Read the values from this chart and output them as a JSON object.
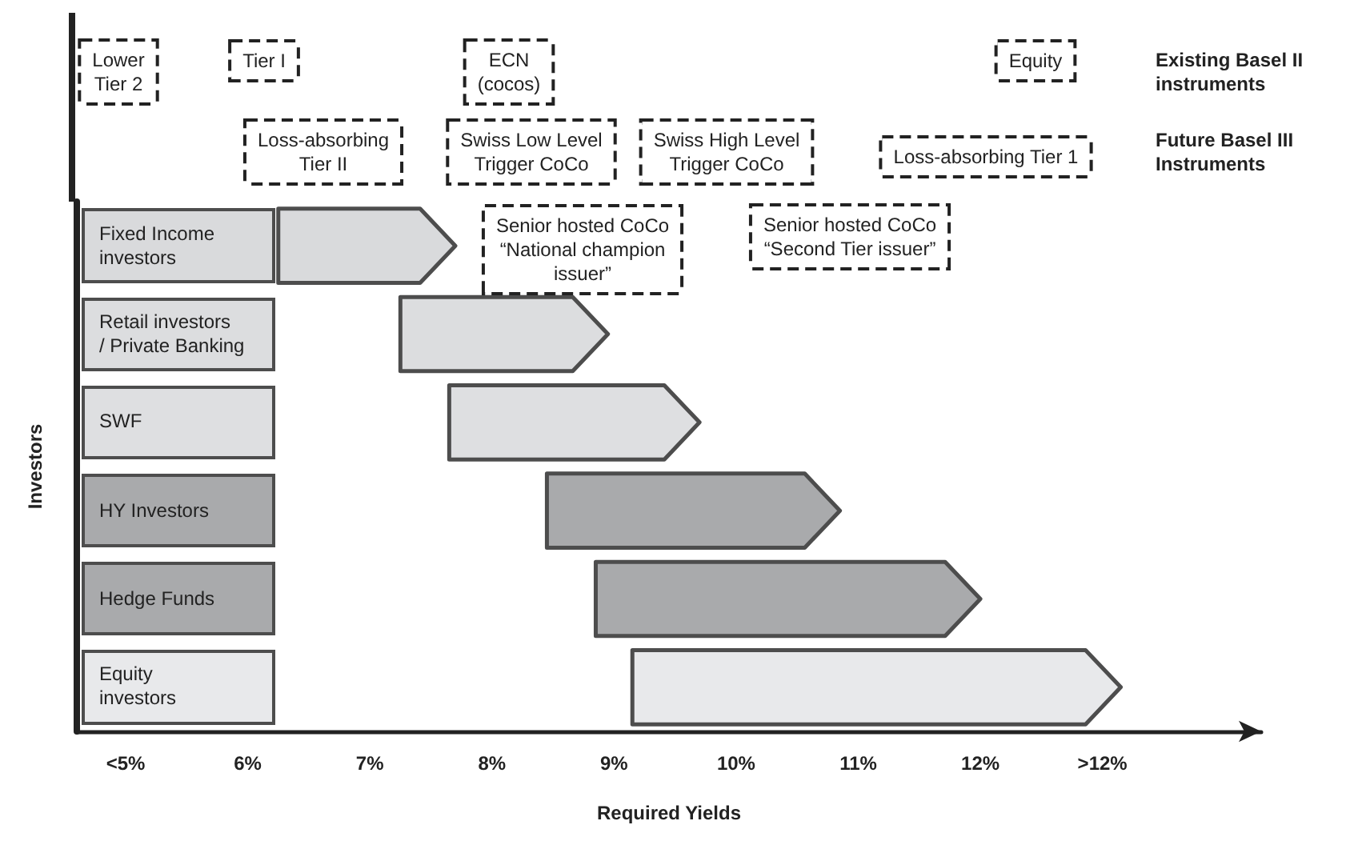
{
  "chart_data": {
    "type": "bar",
    "orientation": "horizontal",
    "xlabel": "Required Yields",
    "ylabel": "Investors",
    "categories": [
      "Fixed Income\ninvestors",
      "Retail investors\n/ Private Banking",
      "SWF",
      "HY Investors",
      "Hedge Funds",
      "Equity\ninvestors"
    ],
    "base": [
      6.25,
      7.25,
      7.65,
      8.45,
      8.85,
      9.15
    ],
    "values": [
      1.45,
      1.7,
      2.05,
      2.4,
      3.15,
      4.0
    ],
    "colors": [
      "#d9dadc",
      "#dcdddf",
      "#dedfe1",
      "#a9aaac",
      "#a9aaac",
      "#e8e9eb"
    ],
    "xlim": [
      4.6,
      14.3
    ],
    "xticks": [
      {
        "value": 5,
        "label": "<5%"
      },
      {
        "value": 6,
        "label": "6%"
      },
      {
        "value": 7,
        "label": "7%"
      },
      {
        "value": 8,
        "label": "8%"
      },
      {
        "value": 9,
        "label": "9%"
      },
      {
        "value": 10,
        "label": "10%"
      },
      {
        "value": 11,
        "label": "11%"
      },
      {
        "value": 12,
        "label": "12%"
      },
      {
        "value": 13,
        "label": ">12%"
      }
    ],
    "tick_labels": "x",
    "grid": false,
    "annotations": [
      "Existing Basel II\ninstruments",
      "Future Basel III\nInstruments",
      "Lower\nTier 2",
      "Tier I",
      "ECN\n(cocos)",
      "Equity",
      "Loss-absorbing\nTier II",
      "Swiss Low Level\nTrigger CoCo",
      "Swiss High Level\nTrigger CoCo",
      "Loss-absorbing Tier 1",
      "Senior hosted CoCo\n“National champion\nissuer”",
      "Senior hosted CoCo\n“Second Tier issuer”"
    ]
  }
}
